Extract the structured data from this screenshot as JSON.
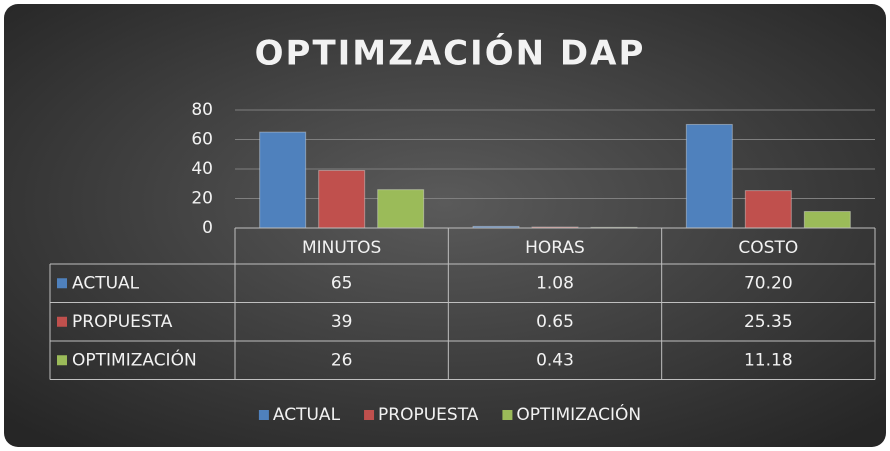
{
  "chart_data": {
    "type": "bar",
    "title": "OPTIMZACIÓN DAP",
    "categories": [
      "MINUTOS",
      "HORAS",
      "COSTO"
    ],
    "series": [
      {
        "name": "ACTUAL",
        "color": "#4f81bd",
        "values": [
          65,
          1.08,
          70.2
        ],
        "value_labels": [
          "65",
          "1.08",
          "70.20"
        ]
      },
      {
        "name": "PROPUESTA",
        "color": "#c0504d",
        "values": [
          39,
          0.65,
          25.35
        ],
        "value_labels": [
          "39",
          "0.65",
          "25.35"
        ]
      },
      {
        "name": "OPTIMIZACIÓN",
        "color": "#9bbb59",
        "values": [
          26,
          0.43,
          11.18
        ],
        "value_labels": [
          "26",
          "0.43",
          "11.18"
        ]
      }
    ],
    "ylim": [
      0,
      80
    ],
    "yticks": [
      0,
      20,
      40,
      60,
      80
    ],
    "grid": true,
    "legend": "bottom",
    "data_table": true
  }
}
